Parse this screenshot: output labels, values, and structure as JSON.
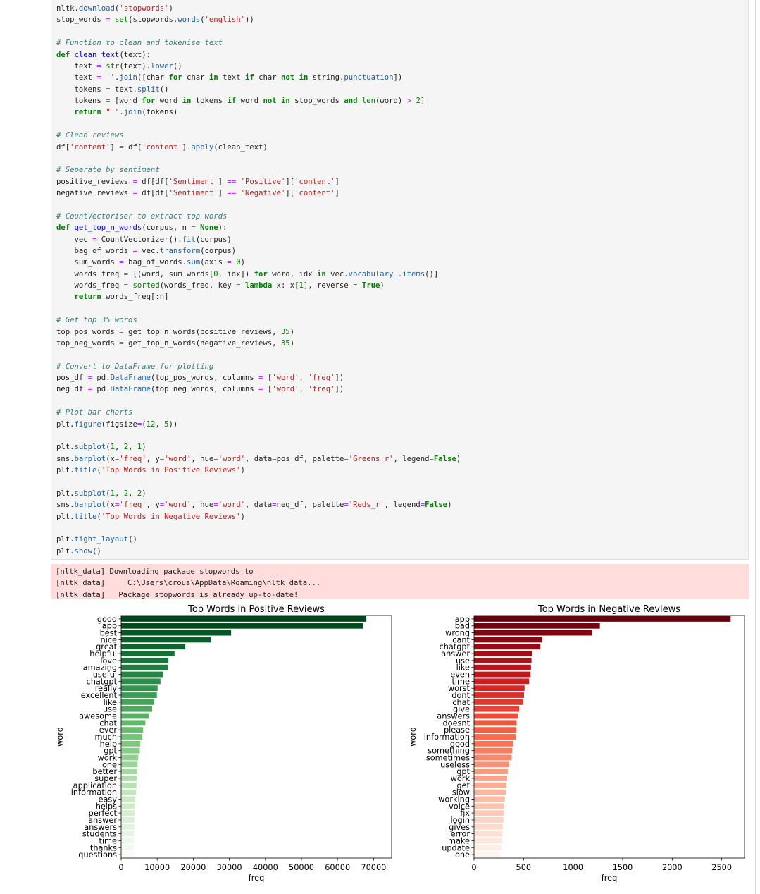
{
  "code_lines": [
    [
      {
        "t": "nltk."
      },
      {
        "t": "download",
        "c": "at"
      },
      {
        "t": "("
      },
      {
        "t": "'stopwords'",
        "c": "st"
      },
      {
        "t": ")"
      }
    ],
    [
      {
        "t": "stop_words "
      },
      {
        "t": "=",
        "c": "op"
      },
      {
        "t": " "
      },
      {
        "t": "set",
        "c": "bi"
      },
      {
        "t": "(stopwords."
      },
      {
        "t": "words",
        "c": "at"
      },
      {
        "t": "("
      },
      {
        "t": "'english'",
        "c": "st"
      },
      {
        "t": "))"
      }
    ],
    [],
    [
      {
        "t": "# Function to clean and tokenise text",
        "c": "cm"
      }
    ],
    [
      {
        "t": "def",
        "c": "kw"
      },
      {
        "t": " "
      },
      {
        "t": "clean_text",
        "c": "fn"
      },
      {
        "t": "(text):"
      }
    ],
    [
      {
        "t": "    text "
      },
      {
        "t": "=",
        "c": "op"
      },
      {
        "t": " "
      },
      {
        "t": "str",
        "c": "bi"
      },
      {
        "t": "(text)."
      },
      {
        "t": "lower",
        "c": "at"
      },
      {
        "t": "()"
      }
    ],
    [
      {
        "t": "    text "
      },
      {
        "t": "=",
        "c": "op"
      },
      {
        "t": " "
      },
      {
        "t": "''",
        "c": "st"
      },
      {
        "t": "."
      },
      {
        "t": "join",
        "c": "at"
      },
      {
        "t": "([char "
      },
      {
        "t": "for",
        "c": "kw"
      },
      {
        "t": " char "
      },
      {
        "t": "in",
        "c": "kw"
      },
      {
        "t": " text "
      },
      {
        "t": "if",
        "c": "kw"
      },
      {
        "t": " char "
      },
      {
        "t": "not",
        "c": "kw"
      },
      {
        "t": " "
      },
      {
        "t": "in",
        "c": "kw"
      },
      {
        "t": " string."
      },
      {
        "t": "punctuation",
        "c": "at"
      },
      {
        "t": "])"
      }
    ],
    [
      {
        "t": "    tokens "
      },
      {
        "t": "=",
        "c": "op"
      },
      {
        "t": " text."
      },
      {
        "t": "split",
        "c": "at"
      },
      {
        "t": "()"
      }
    ],
    [
      {
        "t": "    tokens "
      },
      {
        "t": "=",
        "c": "op"
      },
      {
        "t": " [word "
      },
      {
        "t": "for",
        "c": "kw"
      },
      {
        "t": " word "
      },
      {
        "t": "in",
        "c": "kw"
      },
      {
        "t": " tokens "
      },
      {
        "t": "if",
        "c": "kw"
      },
      {
        "t": " word "
      },
      {
        "t": "not",
        "c": "kw"
      },
      {
        "t": " "
      },
      {
        "t": "in",
        "c": "kw"
      },
      {
        "t": " stop_words "
      },
      {
        "t": "and",
        "c": "kw"
      },
      {
        "t": " "
      },
      {
        "t": "len",
        "c": "bi"
      },
      {
        "t": "(word) "
      },
      {
        "t": ">",
        "c": "op"
      },
      {
        "t": " "
      },
      {
        "t": "2",
        "c": "nu"
      },
      {
        "t": "]"
      }
    ],
    [
      {
        "t": "    "
      },
      {
        "t": "return",
        "c": "kw"
      },
      {
        "t": " "
      },
      {
        "t": "\" \"",
        "c": "st"
      },
      {
        "t": "."
      },
      {
        "t": "join",
        "c": "at"
      },
      {
        "t": "(tokens)"
      }
    ],
    [],
    [
      {
        "t": "# Clean reviews",
        "c": "cm"
      }
    ],
    [
      {
        "t": "df["
      },
      {
        "t": "'content'",
        "c": "st"
      },
      {
        "t": "] "
      },
      {
        "t": "=",
        "c": "op"
      },
      {
        "t": " df["
      },
      {
        "t": "'content'",
        "c": "st"
      },
      {
        "t": "]."
      },
      {
        "t": "apply",
        "c": "at"
      },
      {
        "t": "(clean_text)"
      }
    ],
    [],
    [
      {
        "t": "# Seperate by sentiment",
        "c": "cm"
      }
    ],
    [
      {
        "t": "positive_reviews "
      },
      {
        "t": "=",
        "c": "op"
      },
      {
        "t": " df[df["
      },
      {
        "t": "'Sentiment'",
        "c": "st"
      },
      {
        "t": "] "
      },
      {
        "t": "==",
        "c": "op"
      },
      {
        "t": " "
      },
      {
        "t": "'Positive'",
        "c": "st"
      },
      {
        "t": "]["
      },
      {
        "t": "'content'",
        "c": "st"
      },
      {
        "t": "]"
      }
    ],
    [
      {
        "t": "negative_reviews "
      },
      {
        "t": "=",
        "c": "op"
      },
      {
        "t": " df[df["
      },
      {
        "t": "'Sentiment'",
        "c": "st"
      },
      {
        "t": "] "
      },
      {
        "t": "==",
        "c": "op"
      },
      {
        "t": " "
      },
      {
        "t": "'Negative'",
        "c": "st"
      },
      {
        "t": "]["
      },
      {
        "t": "'content'",
        "c": "st"
      },
      {
        "t": "]"
      }
    ],
    [],
    [
      {
        "t": "# CountVectoriser to extract top words",
        "c": "cm"
      }
    ],
    [
      {
        "t": "def",
        "c": "kw"
      },
      {
        "t": " "
      },
      {
        "t": "get_top_n_words",
        "c": "fn"
      },
      {
        "t": "(corpus, n "
      },
      {
        "t": "=",
        "c": "op"
      },
      {
        "t": " "
      },
      {
        "t": "None",
        "c": "kw"
      },
      {
        "t": "):"
      }
    ],
    [
      {
        "t": "    vec "
      },
      {
        "t": "=",
        "c": "op"
      },
      {
        "t": " CountVectorizer()."
      },
      {
        "t": "fit",
        "c": "at"
      },
      {
        "t": "(corpus)"
      }
    ],
    [
      {
        "t": "    bag_of_words "
      },
      {
        "t": "=",
        "c": "op"
      },
      {
        "t": " vec."
      },
      {
        "t": "transform",
        "c": "at"
      },
      {
        "t": "(corpus)"
      }
    ],
    [
      {
        "t": "    sum_words "
      },
      {
        "t": "=",
        "c": "op"
      },
      {
        "t": " bag_of_words."
      },
      {
        "t": "sum",
        "c": "at"
      },
      {
        "t": "(axis "
      },
      {
        "t": "=",
        "c": "op"
      },
      {
        "t": " "
      },
      {
        "t": "0",
        "c": "nu"
      },
      {
        "t": ")"
      }
    ],
    [
      {
        "t": "    words_freq "
      },
      {
        "t": "=",
        "c": "op"
      },
      {
        "t": " [(word, sum_words["
      },
      {
        "t": "0",
        "c": "nu"
      },
      {
        "t": ", idx]) "
      },
      {
        "t": "for",
        "c": "kw"
      },
      {
        "t": " word, idx "
      },
      {
        "t": "in",
        "c": "kw"
      },
      {
        "t": " vec."
      },
      {
        "t": "vocabulary_",
        "c": "at"
      },
      {
        "t": "."
      },
      {
        "t": "items",
        "c": "at"
      },
      {
        "t": "()]"
      }
    ],
    [
      {
        "t": "    words_freq "
      },
      {
        "t": "=",
        "c": "op"
      },
      {
        "t": " "
      },
      {
        "t": "sorted",
        "c": "bi"
      },
      {
        "t": "(words_freq, key "
      },
      {
        "t": "=",
        "c": "op"
      },
      {
        "t": " "
      },
      {
        "t": "lambda",
        "c": "kw"
      },
      {
        "t": " x: x["
      },
      {
        "t": "1",
        "c": "nu"
      },
      {
        "t": "], reverse "
      },
      {
        "t": "=",
        "c": "op"
      },
      {
        "t": " "
      },
      {
        "t": "True",
        "c": "kw"
      },
      {
        "t": ")"
      }
    ],
    [
      {
        "t": "    "
      },
      {
        "t": "return",
        "c": "kw"
      },
      {
        "t": " words_freq[:n]"
      }
    ],
    [],
    [
      {
        "t": "# Get top 35 words",
        "c": "cm"
      }
    ],
    [
      {
        "t": "top_pos_words "
      },
      {
        "t": "=",
        "c": "op"
      },
      {
        "t": " get_top_n_words(positive_reviews, "
      },
      {
        "t": "35",
        "c": "nu"
      },
      {
        "t": ")"
      }
    ],
    [
      {
        "t": "top_neg_words "
      },
      {
        "t": "=",
        "c": "op"
      },
      {
        "t": " get_top_n_words(negative_reviews, "
      },
      {
        "t": "35",
        "c": "nu"
      },
      {
        "t": ")"
      }
    ],
    [],
    [
      {
        "t": "# Convert to DataFrame for plotting",
        "c": "cm"
      }
    ],
    [
      {
        "t": "pos_df "
      },
      {
        "t": "=",
        "c": "op"
      },
      {
        "t": " pd."
      },
      {
        "t": "DataFrame",
        "c": "at"
      },
      {
        "t": "(top_pos_words, columns "
      },
      {
        "t": "=",
        "c": "op"
      },
      {
        "t": " ["
      },
      {
        "t": "'word'",
        "c": "st"
      },
      {
        "t": ", "
      },
      {
        "t": "'freq'",
        "c": "st"
      },
      {
        "t": "])"
      }
    ],
    [
      {
        "t": "neg_df "
      },
      {
        "t": "=",
        "c": "op"
      },
      {
        "t": " pd."
      },
      {
        "t": "DataFrame",
        "c": "at"
      },
      {
        "t": "(top_neg_words, columns "
      },
      {
        "t": "=",
        "c": "op"
      },
      {
        "t": " ["
      },
      {
        "t": "'word'",
        "c": "st"
      },
      {
        "t": ", "
      },
      {
        "t": "'freq'",
        "c": "st"
      },
      {
        "t": "])"
      }
    ],
    [],
    [
      {
        "t": "# Plot bar charts",
        "c": "cm"
      }
    ],
    [
      {
        "t": "plt."
      },
      {
        "t": "figure",
        "c": "at"
      },
      {
        "t": "(figsize"
      },
      {
        "t": "=",
        "c": "op"
      },
      {
        "t": "("
      },
      {
        "t": "12",
        "c": "nu"
      },
      {
        "t": ", "
      },
      {
        "t": "5",
        "c": "nu"
      },
      {
        "t": "))"
      }
    ],
    [],
    [
      {
        "t": "plt."
      },
      {
        "t": "subplot",
        "c": "at"
      },
      {
        "t": "("
      },
      {
        "t": "1",
        "c": "nu"
      },
      {
        "t": ", "
      },
      {
        "t": "2",
        "c": "nu"
      },
      {
        "t": ", "
      },
      {
        "t": "1",
        "c": "nu"
      },
      {
        "t": ")"
      }
    ],
    [
      {
        "t": "sns."
      },
      {
        "t": "barplot",
        "c": "at"
      },
      {
        "t": "(x"
      },
      {
        "t": "=",
        "c": "op"
      },
      {
        "t": "'freq'",
        "c": "st"
      },
      {
        "t": ", y"
      },
      {
        "t": "=",
        "c": "op"
      },
      {
        "t": "'word'",
        "c": "st"
      },
      {
        "t": ", hue"
      },
      {
        "t": "=",
        "c": "op"
      },
      {
        "t": "'word'",
        "c": "st"
      },
      {
        "t": ", data"
      },
      {
        "t": "=",
        "c": "op"
      },
      {
        "t": "pos_df, palette"
      },
      {
        "t": "=",
        "c": "op"
      },
      {
        "t": "'Greens_r'",
        "c": "st"
      },
      {
        "t": ", legend"
      },
      {
        "t": "=",
        "c": "op"
      },
      {
        "t": "False",
        "c": "kw"
      },
      {
        "t": ")"
      }
    ],
    [
      {
        "t": "plt."
      },
      {
        "t": "title",
        "c": "at"
      },
      {
        "t": "("
      },
      {
        "t": "'Top Words in Positive Reviews'",
        "c": "st"
      },
      {
        "t": ")"
      }
    ],
    [],
    [
      {
        "t": "plt."
      },
      {
        "t": "subplot",
        "c": "at"
      },
      {
        "t": "("
      },
      {
        "t": "1",
        "c": "nu"
      },
      {
        "t": ", "
      },
      {
        "t": "2",
        "c": "nu"
      },
      {
        "t": ", "
      },
      {
        "t": "2",
        "c": "nu"
      },
      {
        "t": ")"
      }
    ],
    [
      {
        "t": "sns."
      },
      {
        "t": "barplot",
        "c": "at"
      },
      {
        "t": "(x"
      },
      {
        "t": "=",
        "c": "op"
      },
      {
        "t": "'freq'",
        "c": "st"
      },
      {
        "t": ", y"
      },
      {
        "t": "=",
        "c": "op"
      },
      {
        "t": "'word'",
        "c": "st"
      },
      {
        "t": ", hue"
      },
      {
        "t": "=",
        "c": "op"
      },
      {
        "t": "'word'",
        "c": "st"
      },
      {
        "t": ", data"
      },
      {
        "t": "=",
        "c": "op"
      },
      {
        "t": "neg_df, palette"
      },
      {
        "t": "=",
        "c": "op"
      },
      {
        "t": "'Reds_r'",
        "c": "st"
      },
      {
        "t": ", legend"
      },
      {
        "t": "=",
        "c": "op"
      },
      {
        "t": "False",
        "c": "kw"
      },
      {
        "t": ")"
      }
    ],
    [
      {
        "t": "plt."
      },
      {
        "t": "title",
        "c": "at"
      },
      {
        "t": "("
      },
      {
        "t": "'Top Words in Negative Reviews'",
        "c": "st"
      },
      {
        "t": ")"
      }
    ],
    [],
    [
      {
        "t": "plt."
      },
      {
        "t": "tight_layout",
        "c": "at"
      },
      {
        "t": "()"
      }
    ],
    [
      {
        "t": "plt."
      },
      {
        "t": "show",
        "c": "at"
      },
      {
        "t": "()"
      }
    ]
  ],
  "output": {
    "stderr_lines": [
      "[nltk_data] Downloading package stopwords to",
      "[nltk_data]     C:\\Users\\crous\\AppData\\Roaming\\nltk_data...",
      "[nltk_data]   Package stopwords is already up-to-date!"
    ]
  },
  "chart_data": [
    {
      "type": "bar",
      "orientation": "horizontal",
      "title": "Top Words in Positive Reviews",
      "xlabel": "freq",
      "ylabel": "word",
      "xlim": [
        0,
        75000
      ],
      "xticks": [
        0,
        10000,
        20000,
        30000,
        40000,
        50000,
        60000,
        70000
      ],
      "palette": "Greens_r",
      "categories": [
        "good",
        "app",
        "best",
        "nice",
        "great",
        "helpful",
        "love",
        "amazing",
        "useful",
        "chatgpt",
        "really",
        "excellent",
        "like",
        "use",
        "awesome",
        "chat",
        "ever",
        "much",
        "help",
        "gpt",
        "work",
        "one",
        "better",
        "super",
        "application",
        "information",
        "easy",
        "helps",
        "perfect",
        "answer",
        "answers",
        "students",
        "time",
        "thanks",
        "questions"
      ],
      "values": [
        68000,
        67000,
        30500,
        24800,
        17800,
        14800,
        13100,
        12900,
        11700,
        10900,
        10100,
        9900,
        9100,
        8600,
        7600,
        6700,
        6100,
        5900,
        5300,
        5150,
        4750,
        4550,
        4450,
        4350,
        4250,
        4100,
        3950,
        3800,
        3700,
        3650,
        3600,
        3550,
        3500,
        3450,
        3400
      ]
    },
    {
      "type": "bar",
      "orientation": "horizontal",
      "title": "Top Words in Negative Reviews",
      "xlabel": "freq",
      "ylabel": "word",
      "xlim": [
        0,
        2730
      ],
      "xticks": [
        0,
        500,
        1000,
        1500,
        2000,
        2500
      ],
      "palette": "Reds_r",
      "categories": [
        "app",
        "bad",
        "wrong",
        "cant",
        "chatgpt",
        "answer",
        "use",
        "like",
        "even",
        "time",
        "worst",
        "dont",
        "chat",
        "give",
        "answers",
        "doesnt",
        "please",
        "information",
        "good",
        "something",
        "sometimes",
        "useless",
        "gpt",
        "work",
        "get",
        "slow",
        "working",
        "voice",
        "fix",
        "login",
        "gives",
        "error",
        "make",
        "update",
        "one"
      ],
      "values": [
        2590,
        1270,
        1190,
        690,
        670,
        585,
        580,
        575,
        570,
        555,
        510,
        505,
        495,
        455,
        440,
        430,
        425,
        420,
        395,
        385,
        380,
        355,
        340,
        335,
        325,
        320,
        310,
        305,
        300,
        295,
        290,
        285,
        280,
        275,
        265
      ]
    }
  ]
}
